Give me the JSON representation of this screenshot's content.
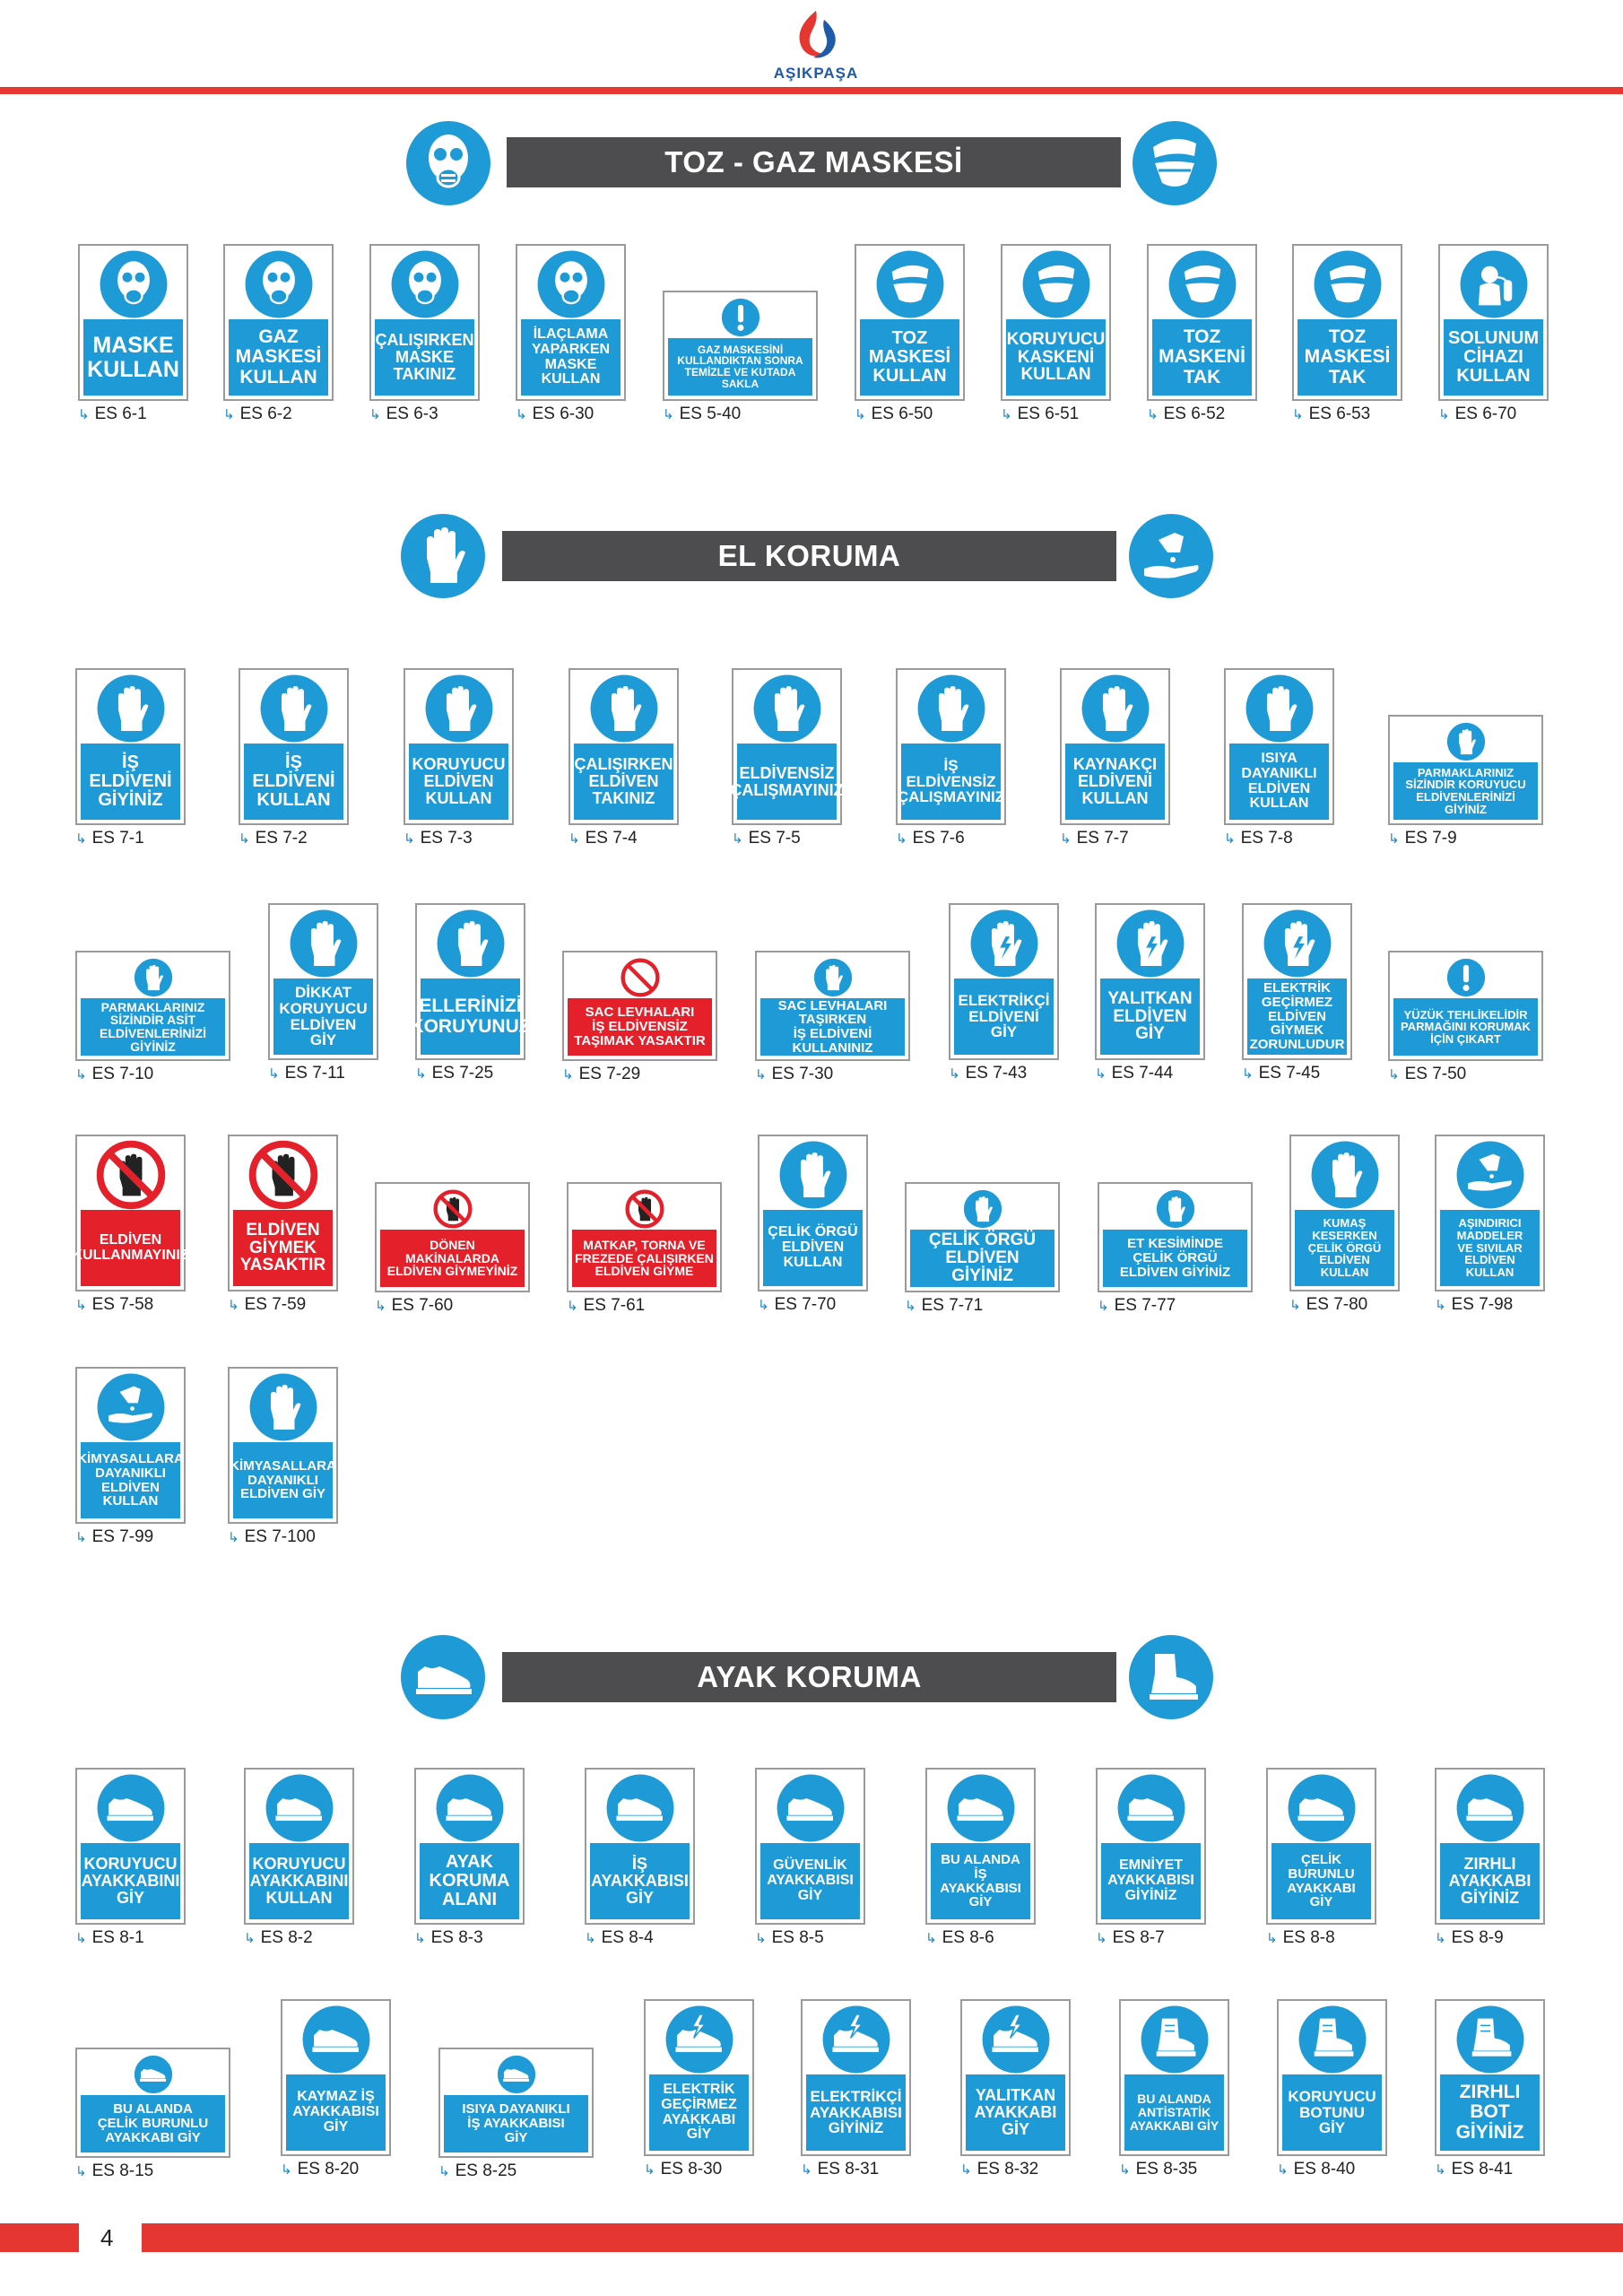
{
  "brand": {
    "logo_text": "AŞIKPAŞA",
    "red": "#e63631",
    "blue": "#1e9ad6",
    "signal_red": "#e4202a"
  },
  "page_number": "4",
  "sections": {
    "gas": {
      "title": "TOZ - GAZ MASKESİ",
      "left_icon": "gas-mask-icon",
      "right_icon": "dust-mask-icon"
    },
    "hand": {
      "title": "EL KORUMA",
      "left_icon": "glove-icon",
      "right_icon": "hand-cream-icon"
    },
    "foot": {
      "title": "AYAK KORUMA",
      "left_icon": "shoe-icon",
      "right_icon": "boot-icon"
    }
  },
  "signs": [
    {
      "code": "ES 6-1",
      "text": "MASKE\nKULLAN",
      "icon": "gas-mask",
      "color": "blue"
    },
    {
      "code": "ES 6-2",
      "text": "GAZ\nMASKESİ\nKULLAN",
      "icon": "gas-mask",
      "color": "blue"
    },
    {
      "code": "ES 6-3",
      "text": "ÇALIŞIRKEN\nMASKE\nTAKINIZ",
      "icon": "gas-mask",
      "color": "blue"
    },
    {
      "code": "ES 6-30",
      "text": "İLAÇLAMA\nYAPARKEN\nMASKE\nKULLAN",
      "icon": "gas-mask",
      "color": "blue"
    },
    {
      "code": "ES 5-40",
      "text": "GAZ MASKESİNİ\nKULLANDIKTAN SONRA\nTEMİZLE VE KUTADA SAKLA",
      "icon": "exclamation",
      "color": "blue"
    },
    {
      "code": "ES 6-50",
      "text": "TOZ\nMASKESİ\nKULLAN",
      "icon": "dust-mask",
      "color": "blue"
    },
    {
      "code": "ES 6-51",
      "text": "KORUYUCU\nKASKENİ\nKULLAN",
      "icon": "dust-mask",
      "color": "blue"
    },
    {
      "code": "ES 6-52",
      "text": "TOZ\nMASKENİ\nTAK",
      "icon": "dust-mask",
      "color": "blue"
    },
    {
      "code": "ES 6-53",
      "text": "TOZ\nMASKESİ\nTAK",
      "icon": "dust-mask",
      "color": "blue"
    },
    {
      "code": "ES 6-70",
      "text": "SOLUNUM\nCİHAZI\nKULLAN",
      "icon": "breathing",
      "color": "blue"
    },
    {
      "code": "ES 7-1",
      "text": "İŞ ELDİVENİ\nGİYİNİZ",
      "icon": "glove",
      "color": "blue"
    },
    {
      "code": "ES 7-2",
      "text": "İŞ\nELDİVENİ\nKULLAN",
      "icon": "glove",
      "color": "blue"
    },
    {
      "code": "ES 7-3",
      "text": "KORUYUCU\nELDİVEN\nKULLAN",
      "icon": "glove",
      "color": "blue"
    },
    {
      "code": "ES 7-4",
      "text": "ÇALIŞIRKEN\nELDİVEN\nTAKINIZ",
      "icon": "glove",
      "color": "blue"
    },
    {
      "code": "ES 7-5",
      "text": "ELDİVENSİZ\nÇALIŞMAYINIZ",
      "icon": "glove",
      "color": "blue"
    },
    {
      "code": "ES 7-6",
      "text": "İŞ\nELDİVENSİZ\nÇALIŞMAYINIZ",
      "icon": "glove",
      "color": "blue"
    },
    {
      "code": "ES 7-7",
      "text": "KAYNAKÇI\nELDİVENİ\nKULLAN",
      "icon": "glove",
      "color": "blue"
    },
    {
      "code": "ES 7-8",
      "text": "ISIYA\nDAYANIKLI\nELDİVEN\nKULLAN",
      "icon": "glove",
      "color": "blue"
    },
    {
      "code": "ES 7-9",
      "text": "PARMAKLARINIZ\nSİZİNDİR KORUYUCU\nELDİVENLERİNİZİ GİYİNİZ",
      "icon": "glove",
      "color": "blue"
    },
    {
      "code": "ES 7-10",
      "text": "PARMAKLARINIZ\nSİZİNDİR ASİT\nELDİVENLERİNİZİ\nGİYİNİZ",
      "icon": "glove",
      "color": "blue"
    },
    {
      "code": "ES 7-11",
      "text": "DİKKAT\nKORUYUCU\nELDİVEN\nGİY",
      "icon": "glove",
      "color": "blue"
    },
    {
      "code": "ES 7-25",
      "text": "ELLERİNİZİ\nKORUYUNUZ",
      "icon": "glove",
      "color": "blue"
    },
    {
      "code": "ES 7-29",
      "text": "SAC LEVHALARI\nİŞ ELDİVENSİZ\nTAŞIMAK YASAKTIR",
      "icon": "prohibit",
      "color": "red"
    },
    {
      "code": "ES 7-30",
      "text": "SAC LEVHALARI\nTAŞIRKEN\nİŞ ELDİVENİ\nKULLANINIZ",
      "icon": "glove",
      "color": "blue"
    },
    {
      "code": "ES 7-43",
      "text": "ELEKTRİKÇİ\nELDİVENİ\nGİY",
      "icon": "glove-elec",
      "color": "blue"
    },
    {
      "code": "ES 7-44",
      "text": "YALITKAN\nELDİVEN\nGİY",
      "icon": "glove-elec",
      "color": "blue"
    },
    {
      "code": "ES 7-45",
      "text": "ELEKTRİK\nGEÇİRMEZ\nELDİVEN\nGİYMEK\nZORUNLUDUR",
      "icon": "glove-elec",
      "color": "blue"
    },
    {
      "code": "ES 7-50",
      "text": "YÜZÜK TEHLİKELİDİR\nPARMAĞINI KORUMAK\nİÇİN ÇIKART",
      "icon": "exclamation",
      "color": "blue"
    },
    {
      "code": "ES 7-58",
      "text": "ELDİVEN\nKULLANMAYINIZ",
      "icon": "no-glove",
      "color": "red"
    },
    {
      "code": "ES 7-59",
      "text": "ELDİVEN\nGİYMEK\nYASAKTIR",
      "icon": "no-glove",
      "color": "red"
    },
    {
      "code": "ES 7-60",
      "text": "DÖNEN\nMAKİNALARDA\nELDİVEN GİYMEYİNİZ",
      "icon": "no-glove",
      "color": "red"
    },
    {
      "code": "ES 7-61",
      "text": "MATKAP, TORNA VE\nFREZEDE ÇALIŞIRKEN\nELDİVEN GİYME",
      "icon": "no-glove",
      "color": "red"
    },
    {
      "code": "ES 7-70",
      "text": "ÇELİK ÖRGÜ\nELDİVEN\nKULLAN",
      "icon": "glove",
      "color": "blue"
    },
    {
      "code": "ES 7-71",
      "text": "ÇELİK ÖRGÜ\nELDİVEN GİYİNİZ",
      "icon": "glove",
      "color": "blue"
    },
    {
      "code": "ES 7-77",
      "text": "ET KESİMİNDE\nÇELİK ÖRGÜ\nELDİVEN GİYİNİZ",
      "icon": "glove",
      "color": "blue"
    },
    {
      "code": "ES 7-80",
      "text": "KUMAŞ KESERKEN\nÇELİK ÖRGÜ\nELDİVEN KULLAN",
      "icon": "glove",
      "color": "blue"
    },
    {
      "code": "ES 7-98",
      "text": "AŞINDIRICI MADDELER\nVE SIVILAR\nELDİVEN KULLAN",
      "icon": "chem-hand",
      "color": "blue"
    },
    {
      "code": "ES 7-99",
      "text": "KİMYASALLARA\nDAYANIKLI\nELDİVEN KULLAN",
      "icon": "chem-hand",
      "color": "blue"
    },
    {
      "code": "ES 7-100",
      "text": "KİMYASALLARA\nDAYANIKLI\nELDİVEN GİY",
      "icon": "glove",
      "color": "blue"
    },
    {
      "code": "ES 8-1",
      "text": "KORUYUCU\nAYAKKABINI\nGİY",
      "icon": "shoe",
      "color": "blue"
    },
    {
      "code": "ES 8-2",
      "text": "KORUYUCU\nAYAKKABINI\nKULLAN",
      "icon": "shoe",
      "color": "blue"
    },
    {
      "code": "ES 8-3",
      "text": "AYAK\nKORUMA\nALANI",
      "icon": "shoe",
      "color": "blue"
    },
    {
      "code": "ES 8-4",
      "text": "İŞ\nAYAKKABISI\nGİY",
      "icon": "shoe",
      "color": "blue"
    },
    {
      "code": "ES 8-5",
      "text": "GÜVENLİK\nAYAKKABISI\nGİY",
      "icon": "shoe",
      "color": "blue"
    },
    {
      "code": "ES 8-6",
      "text": "BU ALANDA\nİŞ AYAKKABISI\nGİY",
      "icon": "shoe",
      "color": "blue"
    },
    {
      "code": "ES 8-7",
      "text": "EMNİYET\nAYAKKABISI\nGİYİNİZ",
      "icon": "shoe",
      "color": "blue"
    },
    {
      "code": "ES 8-8",
      "text": "ÇELİK\nBURUNLU\nAYAKKABI GİY",
      "icon": "shoe",
      "color": "blue"
    },
    {
      "code": "ES 8-9",
      "text": "ZIRHLI\nAYAKKABI\nGİYİNİZ",
      "icon": "shoe",
      "color": "blue"
    },
    {
      "code": "ES 8-15",
      "text": "BU ALANDA\nÇELİK BURUNLU\nAYAKKABI GİY",
      "icon": "shoe",
      "color": "blue"
    },
    {
      "code": "ES 8-20",
      "text": "KAYMAZ İŞ\nAYAKKABISI\nGİY",
      "icon": "shoe",
      "color": "blue"
    },
    {
      "code": "ES 8-25",
      "text": "ISIYA DAYANIKLI\nİŞ AYAKKABISI\nGİY",
      "icon": "shoe",
      "color": "blue"
    },
    {
      "code": "ES 8-30",
      "text": "ELEKTRİK\nGEÇİRMEZ\nAYAKKABI\nGİY",
      "icon": "shoe-elec",
      "color": "blue"
    },
    {
      "code": "ES 8-31",
      "text": "ELEKTRİKÇİ\nAYAKKABISI\nGİYİNİZ",
      "icon": "shoe-elec",
      "color": "blue"
    },
    {
      "code": "ES 8-32",
      "text": "YALITKAN\nAYAKKABI\nGİY",
      "icon": "shoe-elec",
      "color": "blue"
    },
    {
      "code": "ES 8-35",
      "text": "BU ALANDA\nANTİSTATİK\nAYAKKABI GİY",
      "icon": "boot",
      "color": "blue"
    },
    {
      "code": "ES 8-40",
      "text": "KORUYUCU\nBOTUNU\nGİY",
      "icon": "boot",
      "color": "blue"
    },
    {
      "code": "ES 8-41",
      "text": "ZIRHLI\nBOT\nGİYİNİZ",
      "icon": "boot",
      "color": "blue"
    }
  ]
}
